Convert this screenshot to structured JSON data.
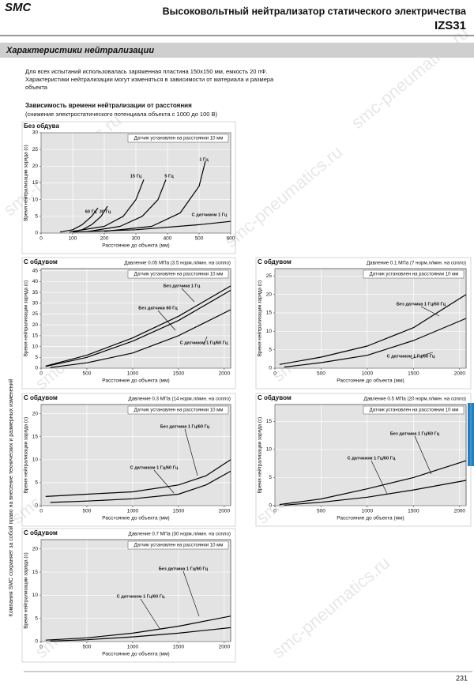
{
  "header": {
    "logo": "SMC",
    "title": "Высоковольтный нейтрализатор статического электричества",
    "model": "IZS31"
  },
  "section": "Характеристики нейтрализации",
  "intro": [
    "Для всех испытаний использовалась заряженная пластина 150x150 мм, емкость 20 пФ.",
    "Характеристики нейтрализации могут изменяться в зависимости от материала и размера",
    "объекта"
  ],
  "subheading": "Зависимость времени нейтрализации от расстояния",
  "subnote": "(снижение электростатического потенциала объекта с 1000 до 100 В)",
  "side_note": "Компания SMC сохраняет за собой право на внесение технических и размерных изменений",
  "page_number": "231",
  "watermark": "smc-pneumatics.ru",
  "chart_data": [
    {
      "type": "line",
      "title": "Без обдува",
      "annotation": "Датчик установлен на расстоянии 10 мм",
      "xlabel": "Расстояние до объекта (мм)",
      "ylabel": "Время нейтрализации заряда (с)",
      "xlim": [
        0,
        600
      ],
      "ylim": [
        0,
        30
      ],
      "xticks": [
        0,
        100,
        200,
        300,
        400,
        500,
        600
      ],
      "yticks": [
        0,
        5,
        10,
        15,
        20,
        25,
        30
      ],
      "grid": true,
      "series": [
        {
          "name": "60 Гц",
          "color": "#000000",
          "x": [
            60,
            100,
            130,
            160,
            180
          ],
          "values": [
            0.3,
            1,
            2.5,
            5,
            7.5
          ]
        },
        {
          "name": "30 Гц",
          "color": "#000000",
          "x": [
            90,
            130,
            160,
            190,
            210
          ],
          "values": [
            0.3,
            1,
            2.5,
            5,
            8
          ]
        },
        {
          "name": "15 Гц",
          "color": "#000000",
          "x": [
            100,
            200,
            260,
            300,
            325
          ],
          "values": [
            0.5,
            2,
            5,
            10,
            16
          ]
        },
        {
          "name": "5 Гц",
          "color": "#000000",
          "x": [
            150,
            250,
            320,
            370,
            395
          ],
          "values": [
            0.5,
            2,
            5,
            10,
            16
          ]
        },
        {
          "name": "1 Гц",
          "color": "#000000",
          "x": [
            200,
            350,
            440,
            500,
            520
          ],
          "values": [
            0.5,
            2,
            6,
            14,
            21.5
          ]
        },
        {
          "name": "С датчиком 1 Гц",
          "color": "#000000",
          "x": [
            100,
            300,
            500,
            600
          ],
          "values": [
            0.3,
            1,
            2.5,
            3.5
          ]
        }
      ]
    },
    {
      "type": "line",
      "title": "С обдувом",
      "subtitle": "Давление 0.05 МПа (3.5 норм.л/мин. на сопло)",
      "annotation": "Датчик установлен на расстоянии 10 мм",
      "xlabel": "Расстояние до объекта (мм)",
      "ylabel": "Время нейтрализации заряда (с)",
      "xlim": [
        0,
        2070
      ],
      "ylim": [
        0,
        46
      ],
      "xticks": [
        0,
        500,
        1000,
        1500,
        2000
      ],
      "yticks": [
        0,
        5,
        10,
        15,
        20,
        25,
        30,
        35,
        40,
        45
      ],
      "grid": true,
      "series": [
        {
          "name": "Без датчика 1 Гц",
          "color": "#000000",
          "x": [
            50,
            500,
            1000,
            1500,
            2070
          ],
          "values": [
            1,
            6,
            14,
            24,
            38
          ]
        },
        {
          "name": "Без датчика 60 Гц",
          "color": "#000000",
          "x": [
            50,
            500,
            1000,
            1500,
            2070
          ],
          "values": [
            0.8,
            5,
            12.5,
            22,
            36
          ]
        },
        {
          "name": "С датчиком 1 Гц/60 Гц",
          "color": "#000000",
          "x": [
            100,
            500,
            1000,
            1500,
            2070
          ],
          "values": [
            0.3,
            2.5,
            7,
            15,
            27
          ]
        }
      ]
    },
    {
      "type": "line",
      "title": "С обдувом",
      "subtitle": "Давление 0.1 МПа (7 норм.л/мин. на сопло)",
      "annotation": "Датчик установлен на расстоянии 10 мм",
      "xlabel": "Расстояние до объекта (мм)",
      "ylabel": "Время нейтрализации заряда (с)",
      "xlim": [
        0,
        2070
      ],
      "ylim": [
        0,
        27
      ],
      "xticks": [
        0,
        500,
        1000,
        1500,
        2000
      ],
      "yticks": [
        0,
        5,
        10,
        15,
        20,
        25
      ],
      "grid": true,
      "series": [
        {
          "name": "Без датчика 1 Гц/60 Гц",
          "color": "#000000",
          "x": [
            50,
            500,
            1000,
            1500,
            2070
          ],
          "values": [
            1,
            3,
            6,
            11,
            20
          ]
        },
        {
          "name": "С датчиком 1 Гц/60 Гц",
          "color": "#000000",
          "x": [
            100,
            500,
            1000,
            1500,
            2070
          ],
          "values": [
            0.3,
            1.5,
            3.5,
            7.5,
            13.5
          ]
        }
      ]
    },
    {
      "type": "line",
      "title": "С обдувом",
      "subtitle": "Давление 0.3 МПа (14 норм.л/мин. на сопло)",
      "annotation": "Датчик установлен на расстоянии 10 мм",
      "xlabel": "Расстояние до объекта (мм)",
      "ylabel": "Время нейтрализации заряда (с)",
      "xlim": [
        0,
        2070
      ],
      "ylim": [
        0,
        22
      ],
      "xticks": [
        0,
        500,
        1000,
        1500,
        2000
      ],
      "yticks": [
        0,
        5,
        10,
        15,
        20
      ],
      "grid": true,
      "series": [
        {
          "name": "Без датчика 1 Гц/60 Гц",
          "color": "#000000",
          "x": [
            50,
            500,
            1000,
            1500,
            1800,
            2070
          ],
          "values": [
            2,
            2.5,
            3,
            4.5,
            6.5,
            10
          ]
        },
        {
          "name": "С датчиком 1 Гц/60 Гц",
          "color": "#000000",
          "x": [
            100,
            500,
            1000,
            1500,
            1800,
            2070
          ],
          "values": [
            0.7,
            1,
            1.5,
            2.5,
            4.5,
            7.5
          ]
        }
      ]
    },
    {
      "type": "line",
      "title": "С обдувом",
      "subtitle": "Давление 0.5 МПа (20 норм.л/мин. на сопло)",
      "annotation": "Датчик установлен на расстоянии 10 мм",
      "xlabel": "Расстояние до объекта (мм)",
      "ylabel": "Время нейтрализации заряда (с)",
      "xlim": [
        0,
        2070
      ],
      "ylim": [
        0,
        18
      ],
      "xticks": [
        0,
        500,
        1000,
        1500,
        2000
      ],
      "yticks": [
        0,
        5,
        10,
        15
      ],
      "grid": true,
      "series": [
        {
          "name": "Без датчика 1 Гц/60 Гц",
          "color": "#000000",
          "x": [
            50,
            500,
            1000,
            1500,
            2070
          ],
          "values": [
            0.2,
            1.2,
            3,
            5,
            8
          ]
        },
        {
          "name": "С датчиком 1 Гц/60 Гц",
          "color": "#000000",
          "x": [
            100,
            500,
            1000,
            1500,
            2070
          ],
          "values": [
            0.1,
            0.6,
            1.5,
            2.8,
            4.5
          ]
        }
      ]
    },
    {
      "type": "line",
      "title": "С обдувом",
      "subtitle": "Давление 0.7 МПа (30 норм.л/мин. на сопло)",
      "annotation": "Датчик установлен на расстоянии 10 мм",
      "xlabel": "Расстояние до объекта (мм)",
      "ylabel": "Время нейтрализации заряда (с)",
      "xlim": [
        0,
        2070
      ],
      "ylim": [
        0,
        22
      ],
      "xticks": [
        0,
        500,
        1000,
        1500,
        2000
      ],
      "yticks": [
        0,
        5,
        10,
        15,
        20
      ],
      "grid": true,
      "series": [
        {
          "name": "Без датчика 1 Гц/60 Гц",
          "color": "#000000",
          "x": [
            50,
            500,
            1000,
            1500,
            2070
          ],
          "values": [
            0.3,
            0.8,
            1.8,
            3.3,
            5.5
          ]
        },
        {
          "name": "С датчиком 1 Гц/60 Гц",
          "color": "#000000",
          "x": [
            100,
            500,
            1000,
            1500,
            2070
          ],
          "values": [
            0.1,
            0.4,
            1,
            1.8,
            3
          ]
        }
      ]
    }
  ]
}
